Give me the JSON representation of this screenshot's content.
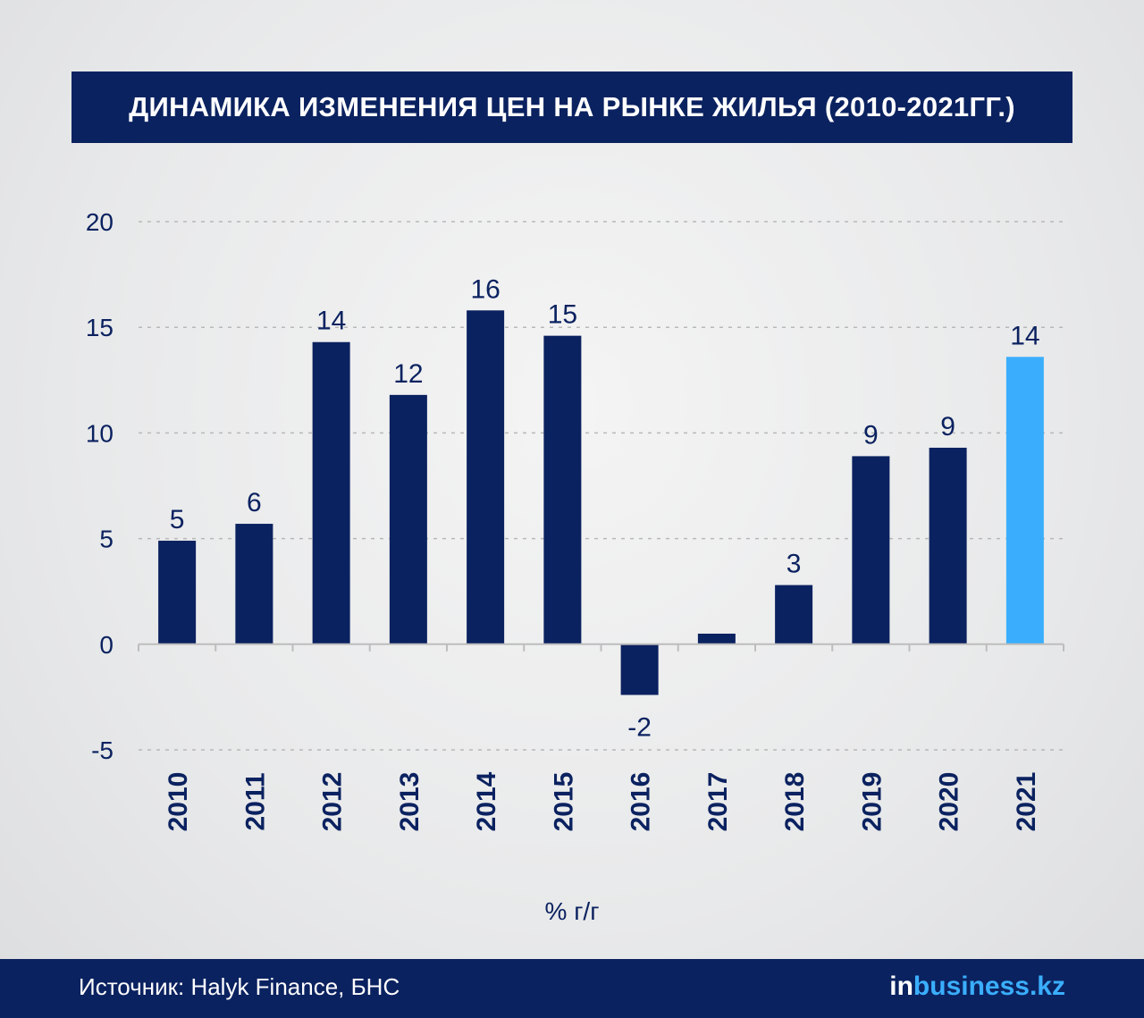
{
  "header": {
    "title": "ДИНАМИКА ИЗМЕНЕНИЯ ЦЕН НА РЫНКЕ ЖИЛЬЯ (2010-2021ГГ.)"
  },
  "footer": {
    "source": "Источник: Halyk Finance, БНС",
    "logo_in": "in",
    "logo_rest": "business.kz"
  },
  "colors": {
    "bar": "#0b2260",
    "highlight": "#3aaefc",
    "grid": "#b8b8b8",
    "text": "#0b2260"
  },
  "chart_data": {
    "type": "bar",
    "title": "ДИНАМИКА ИЗМЕНЕНИЯ ЦЕН НА РЫНКЕ ЖИЛЬЯ (2010-2021ГГ.)",
    "xlabel": "% г/г",
    "ylabel": "",
    "categories": [
      "2010",
      "2011",
      "2012",
      "2013",
      "2014",
      "2015",
      "2016",
      "2017",
      "2018",
      "2019",
      "2020",
      "2021"
    ],
    "values": [
      4.9,
      5.7,
      14.3,
      11.8,
      15.8,
      14.6,
      -2.4,
      0.5,
      2.8,
      8.9,
      9.3,
      13.6
    ],
    "data_labels": [
      "5",
      "6",
      "14",
      "12",
      "16",
      "15",
      "-2",
      "",
      "3",
      "9",
      "9",
      "14"
    ],
    "highlight_category": "2021",
    "ylim": [
      -5,
      20
    ],
    "yticks": [
      20,
      15,
      10,
      5,
      0,
      -5
    ],
    "grid": true,
    "legend": "none"
  }
}
